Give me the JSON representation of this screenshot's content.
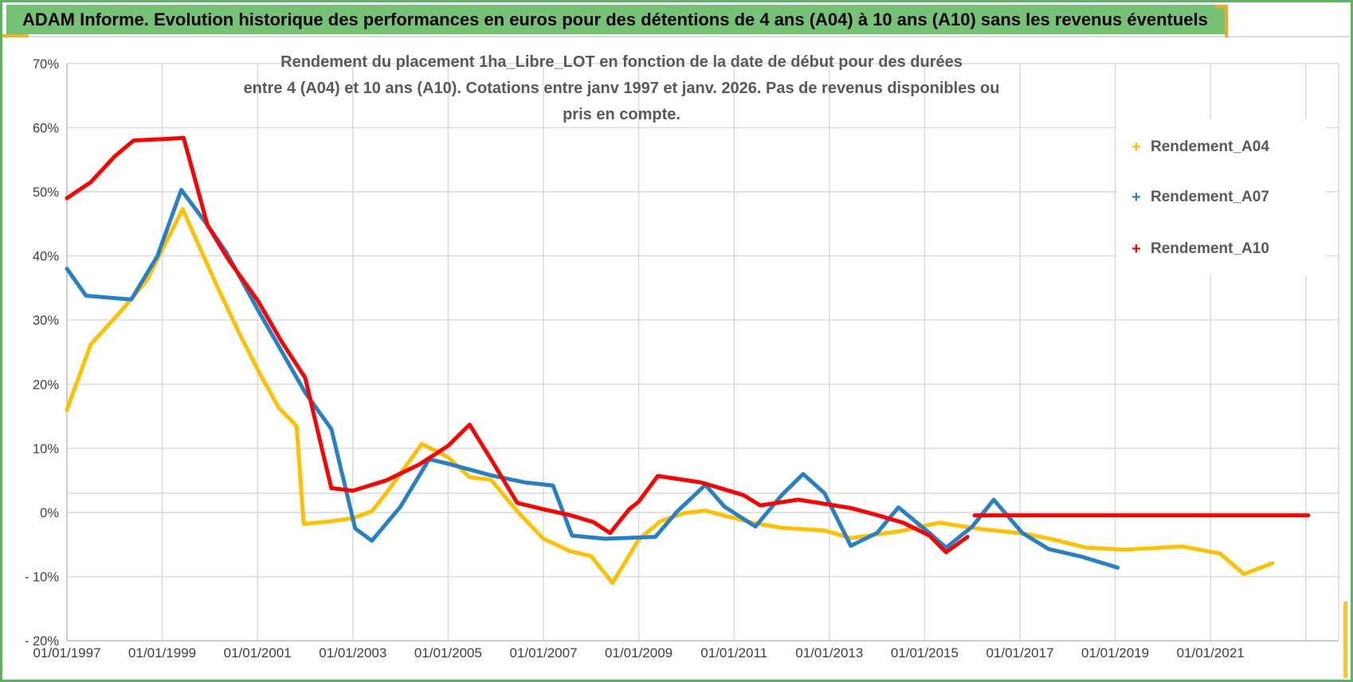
{
  "banner": {
    "title": "ADAM Informe. Evolution historique des performances en euros pour des détentions de 4 ans (A04) à 10 ans (A10) sans les revenus éventuels",
    "background_color": "#76C276",
    "accent_color": "#F5A623"
  },
  "chart_data": {
    "type": "line",
    "title": "Rendement du placement 1ha_Libre_LOT en fonction de la date de début pour des durées entre 4 (A04) et 10 ans (A10). Cotations entre janv 1997 et janv. 2026. Pas de revenus disponibles ou pris en compte.",
    "title_line1": "Rendement du placement 1ha_Libre_LOT en fonction de la date de début pour des durées",
    "title_line2": "entre 4 (A04) et 10 ans (A10). Cotations entre janv 1997 et janv. 2026. Pas de revenus disponibles ou pris en compte.",
    "grid": true,
    "legend_position": "right",
    "x_axis": {
      "start_year": 1997,
      "end_year": 2023,
      "gridline_step_years": 2,
      "ticks": [
        [
          1997,
          "01/01/1997"
        ],
        [
          1999,
          "01/01/1999"
        ],
        [
          2001,
          "01/01/2001"
        ],
        [
          2003,
          "01/01/2003"
        ],
        [
          2005,
          "01/01/2005"
        ],
        [
          2007,
          "01/01/2007"
        ],
        [
          2009,
          "01/01/2009"
        ],
        [
          2011,
          "01/01/2011"
        ],
        [
          2013,
          "01/01/2013"
        ],
        [
          2015,
          "01/01/2015"
        ],
        [
          2017,
          "01/01/2017"
        ],
        [
          2019,
          "01/01/2019"
        ],
        [
          2021,
          "01/01/2021"
        ]
      ]
    },
    "y_axis": {
      "min": -20,
      "max": 70,
      "step": 10,
      "unit": "%",
      "ticks": [
        [
          70,
          "70%"
        ],
        [
          60,
          "60%"
        ],
        [
          50,
          "50%"
        ],
        [
          40,
          "40%"
        ],
        [
          30,
          "30%"
        ],
        [
          20,
          "20%"
        ],
        [
          10,
          "10%"
        ],
        [
          0,
          "0%"
        ],
        [
          -10,
          "- 10%"
        ],
        [
          -20,
          "- 20%"
        ]
      ]
    },
    "reference_line_pct": 3,
    "legend": [
      {
        "label": "Rendement_A04",
        "color": "#FFC000"
      },
      {
        "label": "Rendement_A07",
        "color": "#2580C8"
      },
      {
        "label": "Rendement_A10",
        "color": "#FF0000"
      }
    ],
    "series": [
      {
        "name": "Rendement_A04",
        "color": "#FFC000",
        "points": [
          [
            1997.0,
            16.0
          ],
          [
            1997.5,
            26.2
          ],
          [
            1998.1,
            31.1
          ],
          [
            1998.67,
            36.1
          ],
          [
            1999.43,
            47.3
          ],
          [
            1999.8,
            41.1
          ],
          [
            2000.1,
            36.1
          ],
          [
            2000.6,
            28.2
          ],
          [
            2001.05,
            21.6
          ],
          [
            2001.45,
            16.3
          ],
          [
            2001.82,
            13.5
          ],
          [
            2001.97,
            -1.8
          ],
          [
            2002.5,
            -1.4
          ],
          [
            2003.0,
            -0.9
          ],
          [
            2003.4,
            0.2
          ],
          [
            2003.7,
            3.0
          ],
          [
            2004.45,
            10.7
          ],
          [
            2005.0,
            8.6
          ],
          [
            2005.45,
            5.5
          ],
          [
            2005.9,
            5.1
          ],
          [
            2006.45,
            0.2
          ],
          [
            2007.0,
            -4.1
          ],
          [
            2007.55,
            -6.0
          ],
          [
            2008.0,
            -6.8
          ],
          [
            2008.45,
            -11.0
          ],
          [
            2009.0,
            -4.2
          ],
          [
            2009.45,
            -1.4
          ],
          [
            2009.95,
            -0.1
          ],
          [
            2010.4,
            0.3
          ],
          [
            2010.8,
            -0.5
          ],
          [
            2011.4,
            -1.6
          ],
          [
            2012.0,
            -2.4
          ],
          [
            2012.9,
            -2.8
          ],
          [
            2013.45,
            -4.0
          ],
          [
            2014.5,
            -2.9
          ],
          [
            2015.3,
            -1.6
          ],
          [
            2016.2,
            -2.6
          ],
          [
            2017.1,
            -3.3
          ],
          [
            2017.7,
            -4.2
          ],
          [
            2018.4,
            -5.5
          ],
          [
            2019.2,
            -5.8
          ],
          [
            2020.4,
            -5.3
          ],
          [
            2021.2,
            -6.4
          ],
          [
            2021.7,
            -9.6
          ],
          [
            2022.3,
            -7.9
          ]
        ]
      },
      {
        "name": "Rendement_A07",
        "color": "#2580C8",
        "points": [
          [
            1997.0,
            38.0
          ],
          [
            1997.4,
            33.8
          ],
          [
            1998.35,
            33.2
          ],
          [
            1998.9,
            40.0
          ],
          [
            1999.4,
            50.3
          ],
          [
            1999.95,
            44.8
          ],
          [
            2000.35,
            40.5
          ],
          [
            2001.0,
            31.7
          ],
          [
            2002.0,
            18.7
          ],
          [
            2002.55,
            13.0
          ],
          [
            2003.05,
            -2.5
          ],
          [
            2003.4,
            -4.4
          ],
          [
            2004.0,
            0.9
          ],
          [
            2004.6,
            8.3
          ],
          [
            2005.0,
            7.6
          ],
          [
            2005.9,
            5.8
          ],
          [
            2006.6,
            4.7
          ],
          [
            2007.2,
            4.2
          ],
          [
            2007.6,
            -3.6
          ],
          [
            2008.3,
            -4.1
          ],
          [
            2009.35,
            -3.8
          ],
          [
            2009.8,
            0.1
          ],
          [
            2010.4,
            4.3
          ],
          [
            2010.8,
            0.9
          ],
          [
            2011.45,
            -2.2
          ],
          [
            2012.0,
            2.7
          ],
          [
            2012.45,
            6.0
          ],
          [
            2012.9,
            3.0
          ],
          [
            2013.45,
            -5.2
          ],
          [
            2014.0,
            -3.2
          ],
          [
            2014.45,
            0.8
          ],
          [
            2015.1,
            -3.2
          ],
          [
            2015.45,
            -5.5
          ],
          [
            2016.0,
            -2.2
          ],
          [
            2016.45,
            2.0
          ],
          [
            2017.05,
            -3.2
          ],
          [
            2017.6,
            -5.7
          ],
          [
            2018.3,
            -6.9
          ],
          [
            2019.05,
            -8.6
          ]
        ]
      },
      {
        "name": "Rendement_A10",
        "color": "#FF0000",
        "points": [
          [
            1997.0,
            49.0
          ],
          [
            1997.5,
            51.5
          ],
          [
            1998.0,
            55.5
          ],
          [
            1998.4,
            58.0
          ],
          [
            1999.0,
            58.2
          ],
          [
            1999.45,
            58.4
          ],
          [
            1999.95,
            44.8
          ],
          [
            2000.4,
            39.3
          ],
          [
            2001.0,
            33.1
          ],
          [
            2001.5,
            26.7
          ],
          [
            2002.0,
            21.0
          ],
          [
            2002.35,
            10.0
          ],
          [
            2002.55,
            3.8
          ],
          [
            2003.0,
            3.4
          ],
          [
            2003.7,
            5.0
          ],
          [
            2004.4,
            7.5
          ],
          [
            2005.0,
            10.4
          ],
          [
            2005.45,
            13.7
          ],
          [
            2005.9,
            8.3
          ],
          [
            2006.45,
            1.5
          ],
          [
            2007.0,
            0.5
          ],
          [
            2007.55,
            -0.4
          ],
          [
            2008.05,
            -1.5
          ],
          [
            2008.4,
            -3.2
          ],
          [
            2008.8,
            0.5
          ],
          [
            2009.0,
            1.7
          ],
          [
            2009.4,
            5.7
          ],
          [
            2010.3,
            4.7
          ],
          [
            2011.2,
            2.7
          ],
          [
            2011.55,
            1.1
          ],
          [
            2012.35,
            2.0
          ],
          [
            2013.45,
            0.7
          ],
          [
            2014.0,
            -0.4
          ],
          [
            2014.55,
            -1.6
          ],
          [
            2015.1,
            -3.6
          ],
          [
            2015.45,
            -6.2
          ],
          [
            2015.9,
            -3.8
          ]
        ]
      },
      {
        "name": "Rendement_A10_flat",
        "color": "#FF0000",
        "points": [
          [
            2016.05,
            -0.45
          ],
          [
            2023.05,
            -0.45
          ]
        ]
      }
    ]
  }
}
